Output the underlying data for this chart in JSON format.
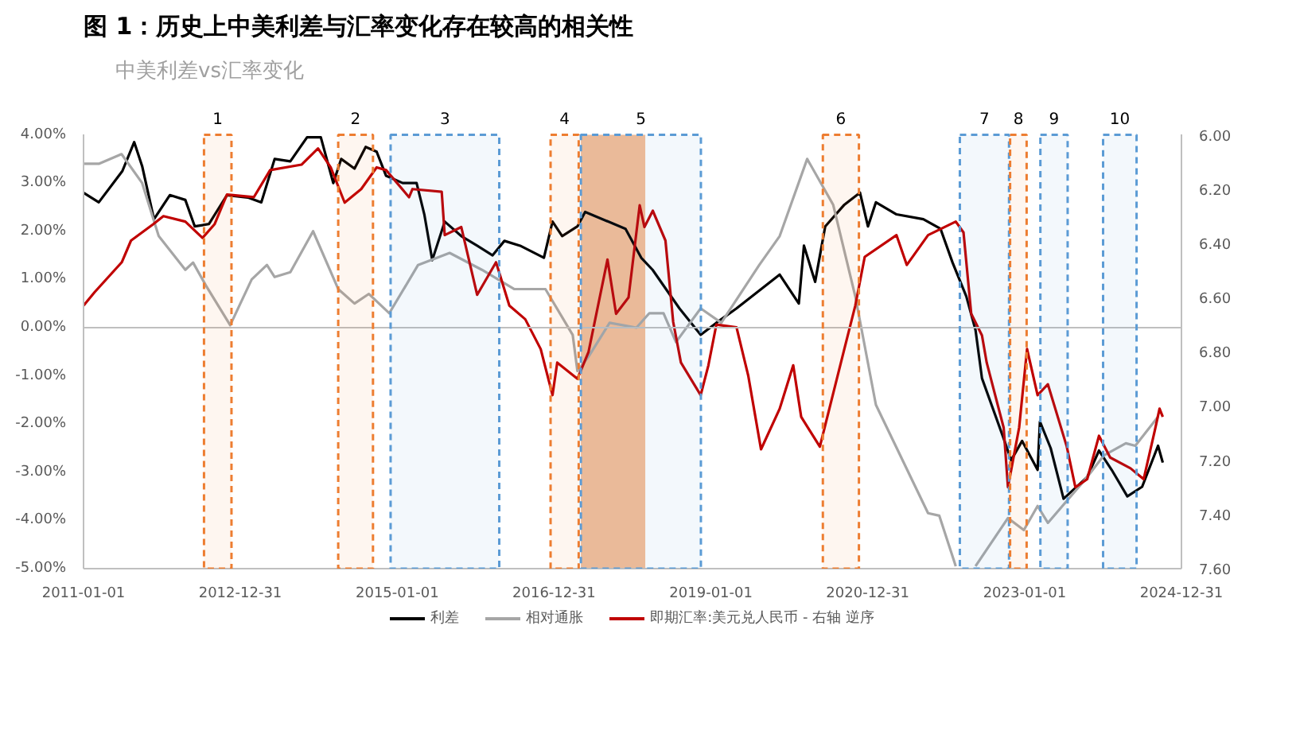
{
  "chart_data": {
    "type": "line",
    "title": "图 1：历史上中美利差与汇率变化存在较高的相关性",
    "subtitle": "中美利差vs汇率变化",
    "xlim": [
      "2011-01-01",
      "2024-12-31"
    ],
    "xticks": [
      "2011-01-01",
      "2012-12-31",
      "2015-01-01",
      "2016-12-31",
      "2019-01-01",
      "2020-12-31",
      "2023-01-01",
      "2024-12-31"
    ],
    "ylim": [
      -5,
      4
    ],
    "yticks": [
      {
        "value": -5,
        "label": "-5.00%"
      },
      {
        "value": -4,
        "label": "-4.00%"
      },
      {
        "value": -3,
        "label": "-3.00%"
      },
      {
        "value": -2,
        "label": "-2.00%"
      },
      {
        "value": -1,
        "label": "-1.00%"
      },
      {
        "value": 0,
        "label": "0.00%"
      },
      {
        "value": 1,
        "label": "1.00%"
      },
      {
        "value": 2,
        "label": "2.00%"
      },
      {
        "value": 3,
        "label": "3.00%"
      },
      {
        "value": 4,
        "label": "4.00%"
      }
    ],
    "y2lim": [
      7.6,
      6.0
    ],
    "y2ticks": [
      {
        "value": 6.0,
        "label": "6.00"
      },
      {
        "value": 6.2,
        "label": "6.20"
      },
      {
        "value": 6.4,
        "label": "6.40"
      },
      {
        "value": 6.6,
        "label": "6.60"
      },
      {
        "value": 6.8,
        "label": "6.80"
      },
      {
        "value": 7.0,
        "label": "7.00"
      },
      {
        "value": 7.2,
        "label": "7.20"
      },
      {
        "value": 7.4,
        "label": "7.40"
      },
      {
        "value": 7.6,
        "label": "7.60"
      }
    ],
    "legend": "bottom",
    "ref_lines": [
      {
        "axis": "y",
        "value": 0,
        "color": "#bfbfbf"
      }
    ],
    "bands": [
      {
        "axis": "x",
        "from": "2017-05-05",
        "to": "2018-03-01",
        "color": "#f4b183"
      },
      {
        "axis": "x",
        "from": "2012-07-15",
        "to": "2012-11-20",
        "label": "1",
        "color": "#ed7d31"
      },
      {
        "axis": "x",
        "from": "2014-04-01",
        "to": "2014-09-10",
        "label": "2",
        "color": "#ed7d31"
      },
      {
        "axis": "x",
        "from": "2014-12-01",
        "to": "2016-04-20",
        "label": "3",
        "color": "#5b9bd5"
      },
      {
        "axis": "x",
        "from": "2016-12-15",
        "to": "2017-04-25",
        "label": "4",
        "color": "#ed7d31"
      },
      {
        "axis": "x",
        "from": "2017-05-05",
        "to": "2018-11-15",
        "label": "5",
        "color": "#5b9bd5"
      },
      {
        "axis": "x",
        "from": "2020-06-05",
        "to": "2020-11-20",
        "label": "6",
        "color": "#ed7d31"
      },
      {
        "axis": "x",
        "from": "2022-03-05",
        "to": "2022-10-20",
        "label": "7",
        "color": "#5b9bd5"
      },
      {
        "axis": "x",
        "from": "2022-10-25",
        "to": "2023-01-10",
        "label": "8",
        "color": "#ed7d31"
      },
      {
        "axis": "x",
        "from": "2023-03-15",
        "to": "2023-07-20",
        "label": "9",
        "color": "#5b9bd5"
      },
      {
        "axis": "x",
        "from": "2024-01-01",
        "to": "2024-06-05",
        "label": "10",
        "color": "#5b9bd5"
      }
    ],
    "series": [
      {
        "name": "利差",
        "color": "#000000",
        "x": [
          "2011-01-01",
          "2011-03-13",
          "2011-07-01",
          "2011-08-25",
          "2011-10-01",
          "2011-11-25",
          "2012-02-07",
          "2012-04-19",
          "2012-06-02",
          "2012-08-07",
          "2012-10-30",
          "2013-02-04",
          "2013-04-08",
          "2013-06-09",
          "2013-08-21",
          "2013-11-07",
          "2014-01-10",
          "2014-03-09",
          "2014-04-15",
          "2014-06-16",
          "2014-08-07",
          "2014-09-27",
          "2014-11-10",
          "2015-01-26",
          "2015-04-01",
          "2015-05-07",
          "2015-06-13",
          "2015-08-10",
          "2015-10-26",
          "2016-01-08",
          "2016-03-20",
          "2016-05-14",
          "2016-07-26",
          "2016-11-14",
          "2016-12-24",
          "2017-02-07",
          "2017-04-19",
          "2017-05-25",
          "2017-11-29",
          "2018-02-10",
          "2018-04-04",
          "2018-08-07",
          "2018-11-14",
          "2019-01-26",
          "2019-04-30",
          "2019-11-17",
          "2020-02-14",
          "2020-03-09",
          "2020-04-30",
          "2020-06-16",
          "2020-09-13",
          "2020-11-25",
          "2021-01-01",
          "2021-02-07",
          "2021-05-14",
          "2021-09-16",
          "2021-12-05",
          "2022-01-30",
          "2022-04-04",
          "2022-05-17",
          "2022-06-16",
          "2022-09-25",
          "2022-10-30",
          "2022-12-20",
          "2023-03-02",
          "2023-03-13",
          "2023-05-02",
          "2023-07-01",
          "2023-10-19",
          "2023-12-13",
          "2024-02-10",
          "2024-04-23",
          "2024-07-01",
          "2024-09-13",
          "2024-10-05"
        ],
        "values": [
          2.8,
          2.6,
          3.25,
          3.85,
          3.35,
          2.25,
          2.75,
          2.65,
          2.1,
          2.15,
          2.75,
          2.7,
          2.6,
          3.5,
          3.45,
          3.95,
          3.95,
          3.0,
          3.5,
          3.3,
          3.75,
          3.65,
          3.15,
          3.0,
          3.0,
          2.35,
          1.4,
          2.2,
          1.9,
          1.7,
          1.5,
          1.8,
          1.7,
          1.45,
          2.2,
          1.9,
          2.1,
          2.4,
          2.05,
          1.45,
          1.2,
          0.4,
          -0.15,
          0.1,
          0.4,
          1.1,
          0.5,
          1.7,
          0.95,
          2.1,
          2.55,
          2.8,
          2.1,
          2.6,
          2.35,
          2.25,
          2.05,
          1.35,
          0.65,
          -0.05,
          -1.05,
          -2.3,
          -2.75,
          -2.35,
          -2.95,
          -1.95,
          -2.5,
          -3.55,
          -3.1,
          -2.55,
          -2.95,
          -3.5,
          -3.3,
          -2.45,
          -2.8
        ]
      },
      {
        "name": "相对通胀",
        "color": "#a6a6a6",
        "x": [
          "2011-01-01",
          "2011-03-13",
          "2011-06-27",
          "2011-10-01",
          "2011-12-17",
          "2012-04-19",
          "2012-05-25",
          "2012-07-27",
          "2012-11-14",
          "2013-02-22",
          "2013-05-04",
          "2013-06-09",
          "2013-08-21",
          "2013-12-05",
          "2014-04-01",
          "2014-06-16",
          "2014-08-22",
          "2014-11-25",
          "2015-04-08",
          "2015-09-02",
          "2016-01-30",
          "2016-06-28",
          "2016-11-21",
          "2017-03-28",
          "2017-04-19",
          "2017-06-10",
          "2017-09-16",
          "2018-01-19",
          "2018-03-20",
          "2018-05-25",
          "2018-07-22",
          "2018-11-14",
          "2019-02-18",
          "2019-08-14",
          "2019-11-17",
          "2020-03-24",
          "2020-07-23",
          "2020-11-03",
          "2021-02-07",
          "2021-10-08",
          "2021-11-29",
          "2022-02-14",
          "2022-04-01",
          "2022-05-17",
          "2022-10-15",
          "2022-12-28",
          "2023-03-02",
          "2023-04-19",
          "2023-10-19",
          "2024-01-05",
          "2024-04-16",
          "2024-05-30",
          "2024-09-13"
        ],
        "values": [
          3.4,
          3.4,
          3.6,
          3.0,
          1.9,
          1.2,
          1.35,
          0.85,
          0.05,
          1.0,
          1.3,
          1.05,
          1.15,
          2.0,
          0.8,
          0.5,
          0.7,
          0.3,
          1.3,
          1.55,
          1.2,
          0.8,
          0.8,
          -0.15,
          -0.9,
          -0.6,
          0.1,
          0.0,
          0.3,
          0.3,
          -0.3,
          0.4,
          0.1,
          1.3,
          1.9,
          3.5,
          2.55,
          0.65,
          -1.6,
          -3.85,
          -3.9,
          -4.95,
          null,
          -4.95,
          -3.95,
          -4.2,
          -3.7,
          -4.05,
          -3.1,
          -2.65,
          -2.4,
          -2.45,
          -1.85
        ]
      },
      {
        "name": "即期汇率:美元兑人民币 - 右轴 逆序",
        "color": "#c00000",
        "axis": "y2",
        "x": [
          "2011-01-01",
          "2011-02-22",
          "2011-06-28",
          "2011-08-10",
          "2011-11-21",
          "2012-01-08",
          "2012-04-19",
          "2012-07-08",
          "2012-09-02",
          "2012-10-30",
          "2013-03-04",
          "2013-05-19",
          "2013-10-12",
          "2013-12-28",
          "2014-02-25",
          "2014-05-01",
          "2014-07-17",
          "2014-09-27",
          "2014-11-10",
          "2015-02-25",
          "2015-03-13",
          "2015-07-27",
          "2015-08-10",
          "2015-10-26",
          "2016-01-08",
          "2016-04-05",
          "2016-06-06",
          "2016-08-19",
          "2016-10-30",
          "2016-12-24",
          "2017-01-15",
          "2017-04-19",
          "2017-06-10",
          "2017-09-06",
          "2017-10-16",
          "2017-12-13",
          "2018-02-03",
          "2018-02-25",
          "2018-04-05",
          "2018-06-03",
          "2018-07-09",
          "2018-08-14",
          "2018-11-14",
          "2018-12-20",
          "2019-01-26",
          "2019-04-30",
          "2019-06-24",
          "2019-08-22",
          "2019-11-17",
          "2020-01-19",
          "2020-02-25",
          "2020-05-22",
          "2020-09-13",
          "2020-11-03",
          "2020-12-17",
          "2021-05-14",
          "2021-07-01",
          "2021-10-08",
          "2022-02-14",
          "2022-03-22",
          "2022-04-27",
          "2022-06-16",
          "2022-07-08",
          "2022-09-25",
          "2022-10-15",
          "2022-12-06",
          "2023-01-12",
          "2023-03-02",
          "2023-04-19",
          "2023-07-16",
          "2023-08-25",
          "2023-10-19",
          "2023-12-13",
          "2024-02-03",
          "2024-05-08",
          "2024-07-08",
          "2024-08-29",
          "2024-09-20",
          "2024-10-05"
        ],
        "values": [
          6.63,
          6.58,
          6.47,
          6.39,
          6.33,
          6.3,
          6.32,
          6.38,
          6.33,
          6.22,
          6.23,
          6.13,
          6.11,
          6.05,
          6.12,
          6.25,
          6.2,
          6.12,
          6.13,
          6.23,
          6.2,
          6.21,
          6.37,
          6.34,
          6.59,
          6.47,
          6.63,
          6.68,
          6.79,
          6.96,
          6.84,
          6.9,
          6.8,
          6.46,
          6.66,
          6.6,
          6.26,
          6.34,
          6.28,
          6.39,
          6.69,
          6.84,
          6.96,
          6.85,
          6.7,
          6.71,
          6.89,
          7.16,
          7.01,
          6.85,
          7.04,
          7.15,
          6.79,
          6.63,
          6.45,
          6.37,
          6.48,
          6.37,
          6.32,
          6.36,
          6.66,
          6.74,
          6.84,
          7.08,
          7.3,
          7.08,
          6.79,
          6.96,
          6.92,
          7.15,
          7.3,
          7.27,
          7.11,
          7.19,
          7.23,
          7.27,
          7.09,
          7.01,
          7.04
        ]
      }
    ]
  }
}
